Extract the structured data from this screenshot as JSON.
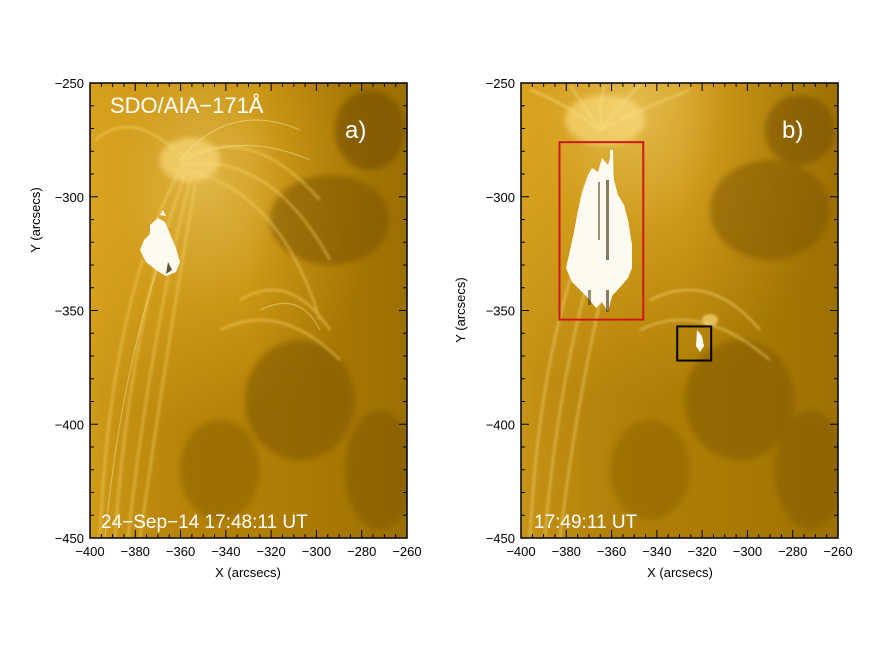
{
  "panels": [
    {
      "id": "a",
      "instrument_label": "SDO/AIA−171Å",
      "panel_label": "a)",
      "timestamp_label": "24−Sep−14 17:48:11 UT",
      "x_axis_title": "X (arcsecs)",
      "y_axis_title": "Y (arcsecs)",
      "x_ticks": [
        "−400",
        "−380",
        "−360",
        "−340",
        "−320",
        "−300",
        "−280",
        "−260"
      ],
      "y_ticks": [
        "−250",
        "−300",
        "−350",
        "−400",
        "−450"
      ],
      "boxes": []
    },
    {
      "id": "b",
      "instrument_label": "",
      "panel_label": "b)",
      "timestamp_label": "17:49:11 UT",
      "x_axis_title": "X (arcsecs)",
      "y_axis_title": "Y (arcsecs)",
      "x_ticks": [
        "−400",
        "−380",
        "−360",
        "−340",
        "−320",
        "−300",
        "−280",
        "−260"
      ],
      "y_ticks": [
        "−250",
        "−300",
        "−350",
        "−400",
        "−450"
      ],
      "boxes": [
        {
          "name": "red-box",
          "color": "#cc1a1a",
          "x_range": [
            -383,
            -346
          ],
          "y_range": [
            -276,
            -354
          ]
        },
        {
          "name": "black-box",
          "color": "#000000",
          "x_range": [
            -331,
            -316
          ],
          "y_range": [
            -357,
            -372
          ]
        }
      ]
    }
  ],
  "colors": {
    "sun_base": "#c9950a",
    "sun_bright": "#f2c23c",
    "sun_dark": "#7a5600",
    "flare_white": "#fffaf0"
  }
}
